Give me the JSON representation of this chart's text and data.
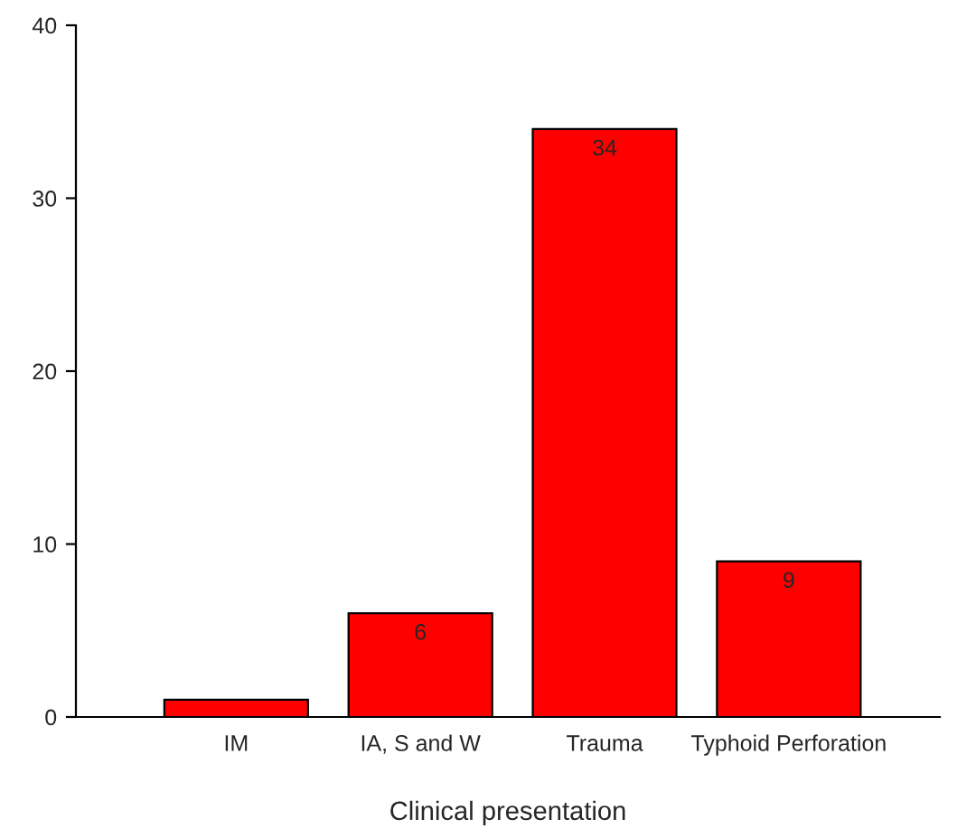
{
  "chart_data": {
    "type": "bar",
    "xlabel": "Clinical presentation",
    "categories": [
      "IM",
      "IA, S and W",
      "Trauma",
      "Typhoid Perforation"
    ],
    "values": [
      1,
      6,
      34,
      9
    ],
    "value_labels": [
      null,
      "6",
      "34",
      "9"
    ],
    "color": "#ff0000",
    "ylim": [
      0,
      40
    ],
    "yticks": [
      0,
      10,
      20,
      30,
      40
    ],
    "grid": false,
    "legend": false
  }
}
